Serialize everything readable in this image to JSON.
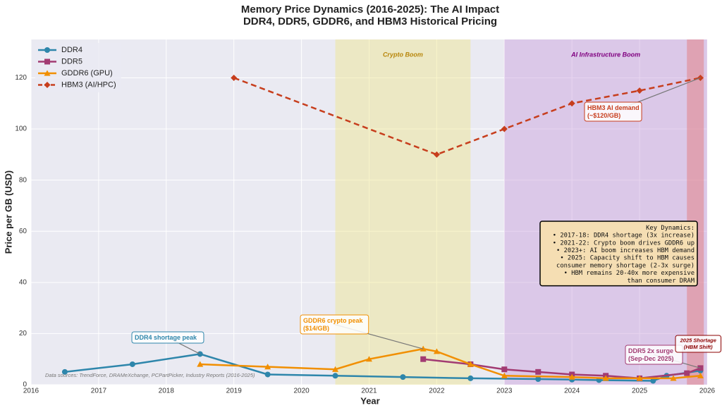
{
  "chart_data": {
    "type": "line",
    "title": "Memory Price Dynamics (2016-2025): The AI Impact",
    "subtitle": "DDR4, DDR5, GDDR6, and HBM3 Historical Pricing",
    "x_label": "Year",
    "y_label": "Price per GB (USD)",
    "xlim": [
      2016,
      2026
    ],
    "xticks": [
      2016,
      2017,
      2018,
      2019,
      2020,
      2021,
      2022,
      2023,
      2024,
      2025,
      2026
    ],
    "ylim": [
      0,
      135
    ],
    "yticks": [
      0,
      20,
      40,
      60,
      80,
      100,
      120
    ],
    "grid": true,
    "legend": "upper left",
    "series": [
      {
        "name": "DDR4",
        "color": "#2e86ab",
        "marker": "circle",
        "dashed": false,
        "x": [
          2016.5,
          2017.5,
          2018.5,
          2019.5,
          2020.5,
          2021.5,
          2022.5,
          2023.5,
          2024,
          2024.4,
          2025.2,
          2025.4,
          2025.9
        ],
        "values": [
          5,
          8,
          12,
          4,
          3.5,
          3,
          2.5,
          2.2,
          2,
          1.8,
          1.5,
          3.5,
          5.5
        ]
      },
      {
        "name": "DDR5",
        "color": "#a23b72",
        "marker": "square",
        "dashed": false,
        "x": [
          2021.8,
          2022.5,
          2023,
          2023.5,
          2024,
          2024.5,
          2025,
          2025.7,
          2025.9
        ],
        "values": [
          10,
          8,
          6,
          5,
          4,
          3.5,
          2.5,
          4.5,
          6.5
        ]
      },
      {
        "name": "GDDR6 (GPU)",
        "color": "#f18f01",
        "marker": "triangle",
        "dashed": false,
        "x": [
          2018.5,
          2019.5,
          2020.5,
          2021,
          2021.8,
          2022,
          2022.5,
          2023,
          2024,
          2024.5,
          2025,
          2025.5,
          2025.9
        ],
        "values": [
          8,
          7,
          6,
          10,
          14,
          13,
          8,
          3.5,
          3,
          2.5,
          2.5,
          2.5,
          3.5
        ]
      },
      {
        "name": "HBM3 (AI/HPC)",
        "color": "#c73e1d",
        "marker": "diamond",
        "dashed": true,
        "x": [
          2019,
          2022,
          2023,
          2024,
          2025,
          2025.9
        ],
        "values": [
          120,
          90,
          100,
          110,
          115,
          120
        ]
      }
    ],
    "regions": [
      {
        "start": 2020.5,
        "end": 2022.5,
        "color": "#f0e68c",
        "label": "Crypto Boom",
        "label_color": "#b8860b"
      },
      {
        "start": 2023,
        "end": 2026,
        "color": "#c9a0dc",
        "label": "AI Infrastructure Boom",
        "label_color": "#800080"
      },
      {
        "start": 2025.7,
        "end": 2025.95,
        "color": "#e57373"
      }
    ],
    "annotations": [
      {
        "lines": [
          "DDR4 shortage peak"
        ],
        "color": "#2e86ab"
      },
      {
        "lines": [
          "GDDR6 crypto peak",
          "($14/GB)"
        ],
        "color": "#f18f01"
      },
      {
        "lines": [
          "HBM3 AI demand",
          "(~$120/GB)"
        ],
        "color": "#c73e1d"
      },
      {
        "lines": [
          "DDR5 2x surge",
          "(Sep-Dec 2025)"
        ],
        "color": "#a23b72"
      },
      {
        "lines": [
          "2025 Shortage",
          "(HBM Shift)"
        ],
        "color": "#8b0000"
      }
    ],
    "key_box": [
      "Key Dynamics:",
      "• 2017-18: DDR4 shortage (3x increase)",
      "• 2021-22: Crypto boom drives GDDR6 up",
      "• 2023+: AI boom increases HBM demand",
      "• 2025: Capacity shift to HBM causes",
      "consumer memory shortage (2-3x surge)",
      "• HBM remains 20-40x more expensive",
      "than consumer DRAM"
    ],
    "source_note": "Data sources: TrendForce, DRAMeXchange, PCPartPicker, Industry Reports (2016-2025)"
  }
}
